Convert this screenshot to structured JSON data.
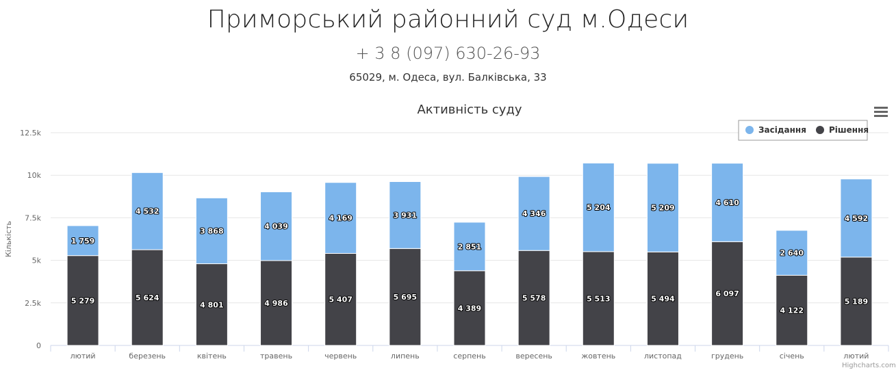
{
  "court": {
    "name": "Приморський районний суд м.Одеси",
    "phone": "+ 3 8 (097) 630-26-93",
    "address": "65029, м. Одеса, вул. Балківська, 33"
  },
  "credits": "Highcharts.com",
  "chart_data": {
    "type": "bar",
    "stacked": true,
    "title": "Активність суду",
    "ylabel": "Кількість",
    "xlabel": "",
    "ylim": [
      0,
      12500
    ],
    "yticks": [
      0,
      2500,
      5000,
      7500,
      10000,
      12500
    ],
    "ytick_labels": [
      "0",
      "2.5k",
      "5k",
      "7.5k",
      "10k",
      "12.5k"
    ],
    "grid": true,
    "legend_position": "top-right",
    "categories": [
      "лютий",
      "березень",
      "квітень",
      "травень",
      "червень",
      "липень",
      "серпень",
      "вересень",
      "жовтень",
      "листопад",
      "грудень",
      "січень",
      "лютий"
    ],
    "series": [
      {
        "name": "Засідання",
        "color": "#7cb5ec",
        "values": [
          1759,
          4532,
          3868,
          4039,
          4169,
          3931,
          2851,
          4346,
          5204,
          5209,
          4610,
          2640,
          4592
        ],
        "labels": [
          "1 759",
          "4 532",
          "3 868",
          "4 039",
          "4 169",
          "3 931",
          "2 851",
          "4 346",
          "5 204",
          "5 209",
          "4 610",
          "2 640",
          "4 592"
        ]
      },
      {
        "name": "Рішення",
        "color": "#434348",
        "values": [
          5279,
          5624,
          4801,
          4986,
          5407,
          5695,
          4389,
          5578,
          5513,
          5494,
          6097,
          4122,
          5189
        ],
        "labels": [
          "5 279",
          "5 624",
          "4 801",
          "4 986",
          "5 407",
          "5 695",
          "4 389",
          "5 578",
          "5 513",
          "5 494",
          "6 097",
          "4 122",
          "5 189"
        ]
      }
    ]
  }
}
